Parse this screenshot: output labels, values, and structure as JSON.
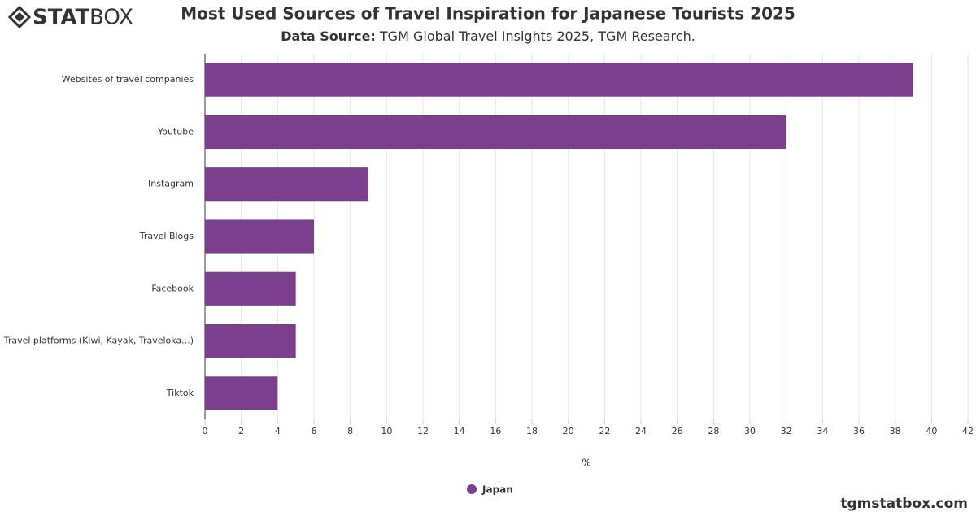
{
  "logo": {
    "bold": "STAT",
    "light": "BOX"
  },
  "footer": "tgmstatbox.com",
  "chart_data": {
    "type": "bar",
    "orientation": "horizontal",
    "title": "Most Used Sources of Travel Inspiration for Japanese Tourists 2025",
    "subtitle": {
      "label": "Data Source:",
      "text": "TGM Global Travel Insights 2025, TGM Research."
    },
    "x_label": "%",
    "categories": [
      "Websites of travel companies",
      "Youtube",
      "Instagram",
      "Travel Blogs",
      "Facebook",
      "Travel platforms (Kiwi, Kayak, Traveloka...)",
      "Tiktok"
    ],
    "series": [
      {
        "name": "Japan",
        "color": "#7b3f8e",
        "values": [
          39,
          32,
          9,
          6,
          5,
          5,
          4
        ]
      }
    ],
    "xlim": [
      0,
      42
    ],
    "xticks": [
      0,
      2,
      4,
      6,
      8,
      10,
      12,
      14,
      16,
      18,
      20,
      22,
      24,
      26,
      28,
      30,
      32,
      34,
      36,
      38,
      40,
      42
    ],
    "grid": true
  }
}
